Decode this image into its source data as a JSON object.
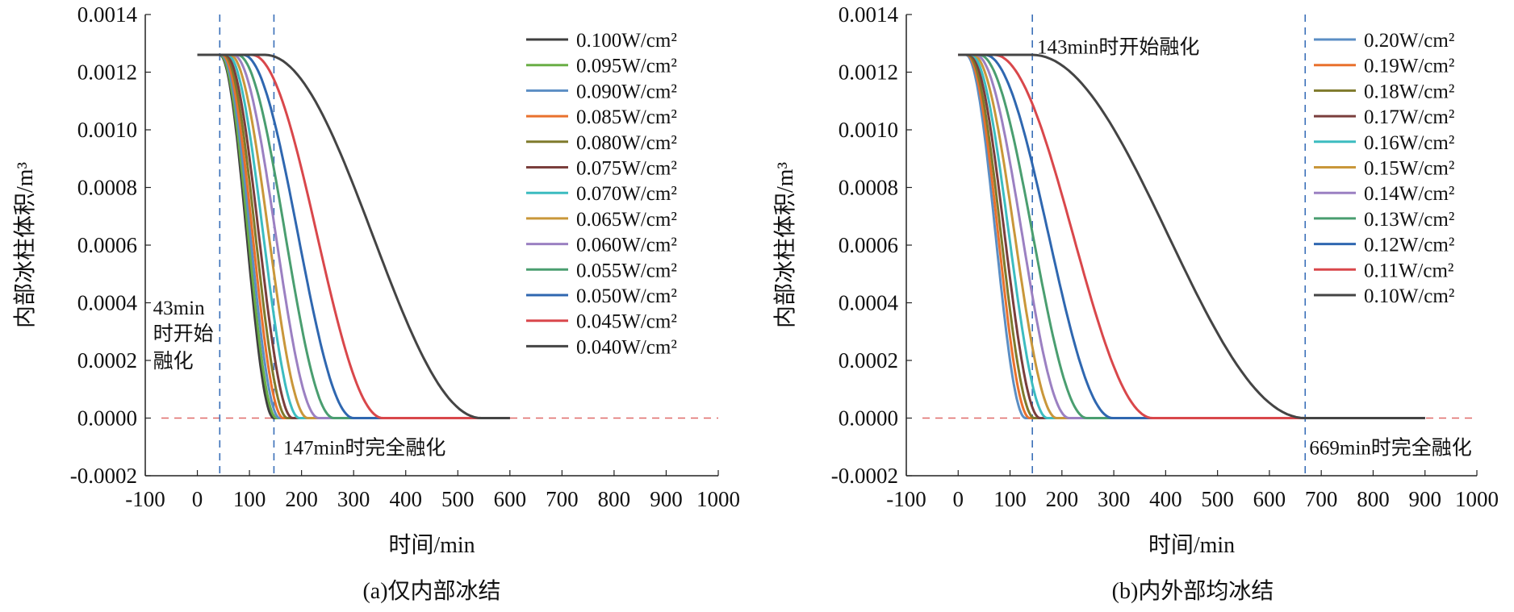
{
  "chart_data": [
    {
      "id": "a",
      "type": "line",
      "caption": "(a)仅内部冰结",
      "xlabel": "时间/min",
      "ylabel": "内部冰柱体积/m³",
      "xlim": [
        -100,
        1000
      ],
      "ylim": [
        -0.0002,
        0.0014
      ],
      "x_ticks": [
        "-100",
        "0",
        "100",
        "200",
        "300",
        "400",
        "500",
        "600",
        "700",
        "800",
        "900",
        "1000"
      ],
      "y_ticks": [
        "0.0014",
        "0.0012",
        "0.0010",
        "0.0008",
        "0.0006",
        "0.0004",
        "0.0002",
        "0.0000",
        "-0.0002"
      ],
      "grid": false,
      "legend_position": "top-right",
      "v0": 0.00126,
      "start_min": 43,
      "vlines": [
        43,
        147
      ],
      "hline": 0,
      "annotations": [
        {
          "text": "43min",
          "x": -85,
          "y": 0.000385
        },
        {
          "text": "时开始",
          "x": -85,
          "y": 0.000295
        },
        {
          "text": "融化",
          "x": -85,
          "y": 0.0002
        },
        {
          "text": "147min时完全融化",
          "x": 165,
          "y": -0.0001
        }
      ],
      "series": [
        {
          "name": "0.100W/cm²",
          "color": "#3f3f3f",
          "start": 43,
          "end": 147
        },
        {
          "name": "0.095W/cm²",
          "color": "#6aae46",
          "start": 44,
          "end": 152
        },
        {
          "name": "0.090W/cm²",
          "color": "#5b8ec4",
          "start": 46,
          "end": 158
        },
        {
          "name": "0.085W/cm²",
          "color": "#e9712d",
          "start": 48,
          "end": 165
        },
        {
          "name": "0.080W/cm²",
          "color": "#7f7a2c",
          "start": 51,
          "end": 173
        },
        {
          "name": "0.075W/cm²",
          "color": "#7a3e3c",
          "start": 54,
          "end": 183
        },
        {
          "name": "0.070W/cm²",
          "color": "#3cbcc0",
          "start": 58,
          "end": 196
        },
        {
          "name": "0.065W/cm²",
          "color": "#c9973a",
          "start": 63,
          "end": 212
        },
        {
          "name": "0.060W/cm²",
          "color": "#9b80c2",
          "start": 69,
          "end": 233
        },
        {
          "name": "0.055W/cm²",
          "color": "#4a9e70",
          "start": 77,
          "end": 262
        },
        {
          "name": "0.050W/cm²",
          "color": "#2f67b0",
          "start": 88,
          "end": 300
        },
        {
          "name": "0.045W/cm²",
          "color": "#d9474b",
          "start": 105,
          "end": 356
        },
        {
          "name": "0.040W/cm²",
          "color": "#444444",
          "start": 130,
          "end": 545
        }
      ]
    },
    {
      "id": "b",
      "type": "line",
      "caption": "(b)内外部均冰结",
      "xlabel": "时间/min",
      "ylabel": "内部冰柱体积/m³",
      "xlim": [
        -100,
        1000
      ],
      "ylim": [
        -0.0002,
        0.0014
      ],
      "x_ticks": [
        "-100",
        "0",
        "100",
        "200",
        "300",
        "400",
        "500",
        "600",
        "700",
        "800",
        "900",
        "1000"
      ],
      "y_ticks": [
        "0.0014",
        "0.0012",
        "0.0010",
        "0.0008",
        "0.0006",
        "0.0004",
        "0.0002",
        "0.0000",
        "-0.0002"
      ],
      "grid": false,
      "legend_position": "top-right",
      "v0": 0.00126,
      "start_min": 0,
      "vlines": [
        143,
        669
      ],
      "hline": 0,
      "annotations": [
        {
          "text": "143min时开始融化",
          "x": 152,
          "y": 0.00129
        },
        {
          "text": "669min时完全融化",
          "x": 677,
          "y": -0.0001
        }
      ],
      "series": [
        {
          "name": "0.20W/cm²",
          "color": "#5b8ec4",
          "start": 15,
          "end": 130
        },
        {
          "name": "0.19W/cm²",
          "color": "#e9712d",
          "start": 17,
          "end": 138
        },
        {
          "name": "0.18W/cm²",
          "color": "#7f7a2c",
          "start": 19,
          "end": 147
        },
        {
          "name": "0.17W/cm²",
          "color": "#7a3e3c",
          "start": 22,
          "end": 158
        },
        {
          "name": "0.16W/cm²",
          "color": "#3cbcc0",
          "start": 25,
          "end": 172
        },
        {
          "name": "0.15W/cm²",
          "color": "#c9973a",
          "start": 29,
          "end": 190
        },
        {
          "name": "0.14W/cm²",
          "color": "#9b80c2",
          "start": 34,
          "end": 214
        },
        {
          "name": "0.13W/cm²",
          "color": "#4a9e70",
          "start": 41,
          "end": 248
        },
        {
          "name": "0.12W/cm²",
          "color": "#2f67b0",
          "start": 52,
          "end": 298
        },
        {
          "name": "0.11W/cm²",
          "color": "#d9474b",
          "start": 70,
          "end": 375
        },
        {
          "name": "0.10W/cm²",
          "color": "#444444",
          "start": 143,
          "end": 669
        }
      ]
    }
  ]
}
